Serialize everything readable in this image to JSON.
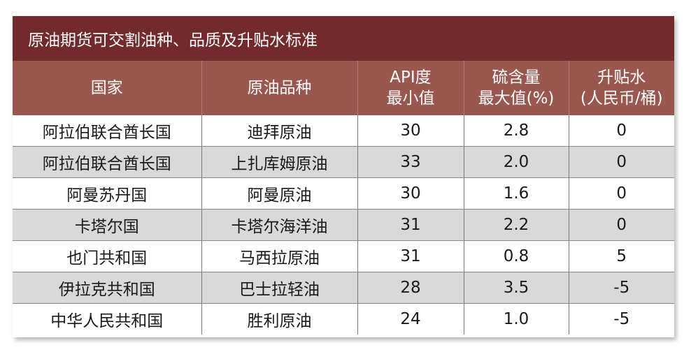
{
  "table": {
    "title": "原油期货可交割油种、品质及升贴水标准",
    "headers": [
      {
        "lines": [
          "国家"
        ]
      },
      {
        "lines": [
          "原油品种"
        ]
      },
      {
        "lines": [
          "API度",
          "最小值"
        ]
      },
      {
        "lines": [
          "硫含量",
          "最大值(%)"
        ]
      },
      {
        "lines": [
          "升贴水",
          "(人民币/桶)"
        ]
      }
    ],
    "rows": [
      [
        "阿拉伯联合酋长国",
        "迪拜原油",
        "30",
        "2.8",
        "0"
      ],
      [
        "阿拉伯联合酋长国",
        "上扎库姆原油",
        "33",
        "2.0",
        "0"
      ],
      [
        "阿曼苏丹国",
        "阿曼原油",
        "30",
        "1.6",
        "0"
      ],
      [
        "卡塔尔国",
        "卡塔尔海洋油",
        "31",
        "2.2",
        "0"
      ],
      [
        "也门共和国",
        "马西拉原油",
        "31",
        "0.8",
        "5"
      ],
      [
        "伊拉克共和国",
        "巴士拉轻油",
        "28",
        "3.5",
        "-5"
      ],
      [
        "中华人民共和国",
        "胜利原油",
        "24",
        "1.0",
        "-5"
      ]
    ]
  },
  "colors": {
    "title_bg": "#722a2c",
    "header_bg": "#9a5750",
    "stripe_bg": "#d9d9d9"
  }
}
